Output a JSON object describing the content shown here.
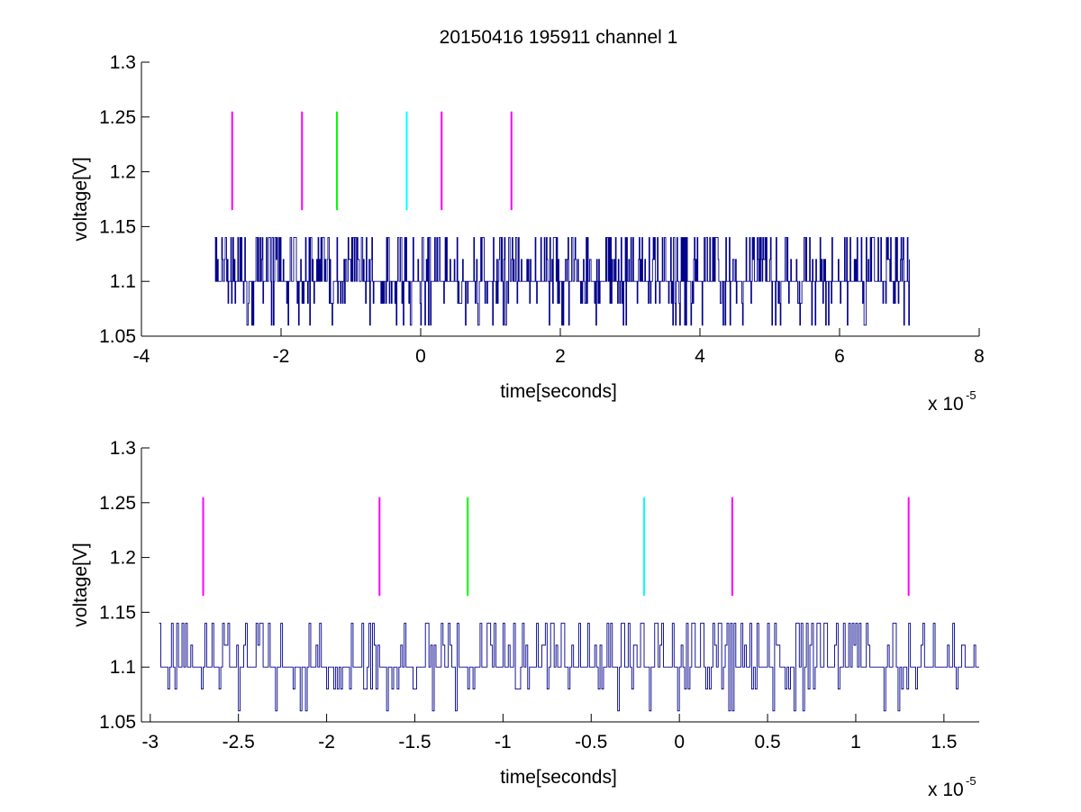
{
  "figure": {
    "title": "20150416 195911 channel 1",
    "background": "#ffffff",
    "trace_color": "#00008b",
    "marker_colors": {
      "magenta": "#ff00ff",
      "green": "#00ff00",
      "cyan": "#00ffff"
    }
  },
  "chart_data": [
    {
      "type": "line",
      "title": "20150416 195911 channel 1",
      "xlabel": "time[seconds]",
      "ylabel": "voltage[V]",
      "x_multiplier": "x 10",
      "x_exponent": "-5",
      "xlim": [
        -4e-05,
        8e-05
      ],
      "ylim": [
        1.05,
        1.3
      ],
      "xticks": [
        -4e-05,
        -2e-05,
        0,
        2e-05,
        4e-05,
        6e-05,
        8e-05
      ],
      "xtick_labels": [
        "-4",
        "-2",
        "0",
        "2",
        "4",
        "6",
        "8"
      ],
      "yticks": [
        1.05,
        1.1,
        1.15,
        1.2,
        1.25,
        1.3
      ],
      "ytick_labels": [
        "1.05",
        "1.1",
        "1.15",
        "1.2",
        "1.25",
        "1.3"
      ],
      "grid": false,
      "series": [
        {
          "color": "#00008b",
          "x_range": [
            -2.95e-05,
            7e-05
          ],
          "values_observed": [
            1.06,
            1.08,
            1.1,
            1.12,
            1.14
          ],
          "baseline": 1.1
        }
      ],
      "markers": [
        {
          "x": -2.7e-05,
          "y_from": 1.165,
          "y_to": 1.255,
          "color": "magenta"
        },
        {
          "x": -1.7e-05,
          "y_from": 1.165,
          "y_to": 1.255,
          "color": "magenta"
        },
        {
          "x": -1.2e-05,
          "y_from": 1.165,
          "y_to": 1.255,
          "color": "green"
        },
        {
          "x": -2e-06,
          "y_from": 1.165,
          "y_to": 1.255,
          "color": "cyan"
        },
        {
          "x": 3e-06,
          "y_from": 1.165,
          "y_to": 1.255,
          "color": "magenta"
        },
        {
          "x": 1.3e-05,
          "y_from": 1.165,
          "y_to": 1.255,
          "color": "magenta"
        }
      ]
    },
    {
      "type": "line",
      "xlabel": "time[seconds]",
      "ylabel": "voltage[V]",
      "x_multiplier": "x 10",
      "x_exponent": "-5",
      "xlim": [
        -3.05e-05,
        1.7e-05
      ],
      "ylim": [
        1.05,
        1.3
      ],
      "xticks": [
        -3e-05,
        -2.5e-05,
        -2e-05,
        -1.5e-05,
        -1e-05,
        -5e-06,
        0,
        5e-06,
        1e-05,
        1.5e-05
      ],
      "xtick_labels": [
        "-3",
        "-2.5",
        "-2",
        "-1.5",
        "-1",
        "-0.5",
        "0",
        "0.5",
        "1",
        "1.5"
      ],
      "yticks": [
        1.05,
        1.1,
        1.15,
        1.2,
        1.25,
        1.3
      ],
      "ytick_labels": [
        "1.05",
        "1.1",
        "1.15",
        "1.2",
        "1.25",
        "1.3"
      ],
      "grid": false,
      "series": [
        {
          "color": "#00008b",
          "x_range": [
            -2.95e-05,
            1.7e-05
          ],
          "values_observed": [
            1.06,
            1.08,
            1.1,
            1.12,
            1.14
          ],
          "baseline": 1.1
        }
      ],
      "markers": [
        {
          "x": -2.7e-05,
          "y_from": 1.165,
          "y_to": 1.255,
          "color": "magenta"
        },
        {
          "x": -1.7e-05,
          "y_from": 1.165,
          "y_to": 1.255,
          "color": "magenta"
        },
        {
          "x": -1.2e-05,
          "y_from": 1.165,
          "y_to": 1.255,
          "color": "green"
        },
        {
          "x": -2e-06,
          "y_from": 1.165,
          "y_to": 1.255,
          "color": "cyan"
        },
        {
          "x": 3e-06,
          "y_from": 1.165,
          "y_to": 1.255,
          "color": "magenta"
        },
        {
          "x": 1.3e-05,
          "y_from": 1.165,
          "y_to": 1.255,
          "color": "magenta"
        }
      ]
    }
  ]
}
